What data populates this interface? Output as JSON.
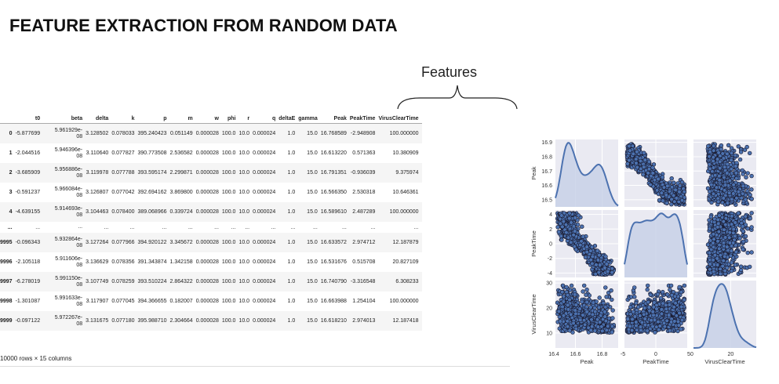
{
  "title": "FEATURE EXTRACTION FROM RANDOM DATA",
  "features_label": "Features",
  "table": {
    "columns": [
      "t0",
      "beta",
      "delta",
      "k",
      "p",
      "m",
      "w",
      "phi",
      "r",
      "q",
      "deltaE",
      "gamma",
      "Peak",
      "PeakTime",
      "VirusClearTime"
    ],
    "rows": [
      {
        "index": "0",
        "cells": [
          "-5.877699",
          "5.961929e-08",
          "3.128502",
          "0.078033",
          "395.240423",
          "0.051149",
          "0.000028",
          "100.0",
          "10.0",
          "0.000024",
          "1.0",
          "15.0",
          "16.768589",
          "-2.948908",
          "100.000000"
        ]
      },
      {
        "index": "1",
        "cells": [
          "-2.044516",
          "5.946396e-08",
          "3.110640",
          "0.077827",
          "390.773508",
          "2.536582",
          "0.000028",
          "100.0",
          "10.0",
          "0.000024",
          "1.0",
          "15.0",
          "16.613220",
          "0.571363",
          "10.380909"
        ]
      },
      {
        "index": "2",
        "cells": [
          "-3.685909",
          "5.956886e-08",
          "3.119978",
          "0.077788",
          "393.595174",
          "2.299871",
          "0.000028",
          "100.0",
          "10.0",
          "0.000024",
          "1.0",
          "15.0",
          "16.791351",
          "-0.936039",
          "9.375974"
        ]
      },
      {
        "index": "3",
        "cells": [
          "-0.591237",
          "5.966084e-08",
          "3.126807",
          "0.077042",
          "392.694162",
          "3.869800",
          "0.000028",
          "100.0",
          "10.0",
          "0.000024",
          "1.0",
          "15.0",
          "16.566350",
          "2.530318",
          "10.646361"
        ]
      },
      {
        "index": "4",
        "cells": [
          "-4.639155",
          "5.914693e-08",
          "3.104463",
          "0.078400",
          "389.068966",
          "0.339724",
          "0.000028",
          "100.0",
          "10.0",
          "0.000024",
          "1.0",
          "15.0",
          "16.589610",
          "2.487289",
          "100.000000"
        ]
      },
      {
        "index": "...",
        "cells": [
          "...",
          "...",
          "...",
          "...",
          "...",
          "...",
          "...",
          "...",
          "...",
          "...",
          "...",
          "...",
          "...",
          "...",
          "..."
        ]
      },
      {
        "index": "9995",
        "cells": [
          "-0.096343",
          "5.932864e-08",
          "3.127264",
          "0.077966",
          "394.920122",
          "3.345672",
          "0.000028",
          "100.0",
          "10.0",
          "0.000024",
          "1.0",
          "15.0",
          "16.633572",
          "2.974712",
          "12.187879"
        ]
      },
      {
        "index": "9996",
        "cells": [
          "-2.105118",
          "5.911606e-08",
          "3.136629",
          "0.078356",
          "391.343874",
          "1.342158",
          "0.000028",
          "100.0",
          "10.0",
          "0.000024",
          "1.0",
          "15.0",
          "16.531676",
          "0.515708",
          "20.827109"
        ]
      },
      {
        "index": "9997",
        "cells": [
          "-6.278019",
          "5.991150e-08",
          "3.107749",
          "0.078259",
          "393.510224",
          "2.864322",
          "0.000028",
          "100.0",
          "10.0",
          "0.000024",
          "1.0",
          "15.0",
          "16.740790",
          "-3.316548",
          "6.308233"
        ]
      },
      {
        "index": "9998",
        "cells": [
          "-1.301087",
          "5.991633e-08",
          "3.117907",
          "0.077045",
          "394.366655",
          "0.182007",
          "0.000028",
          "100.0",
          "10.0",
          "0.000024",
          "1.0",
          "15.0",
          "16.663988",
          "1.254104",
          "100.000000"
        ]
      },
      {
        "index": "9999",
        "cells": [
          "-0.097122",
          "5.972267e-08",
          "3.131675",
          "0.077180",
          "395.988710",
          "2.304664",
          "0.000028",
          "100.0",
          "10.0",
          "0.000024",
          "1.0",
          "15.0",
          "16.618210",
          "2.974013",
          "12.187418"
        ]
      }
    ],
    "shape_note": "10000 rows × 15 columns"
  },
  "chart_data": {
    "type": "scatter",
    "variables": [
      "Peak",
      "PeakTime",
      "VirusClearTime"
    ],
    "axis_ranges": {
      "Peak": [
        16.45,
        16.92
      ],
      "PeakTime": [
        -4.6,
        4.6
      ],
      "VirusClearTime": [
        4,
        31
      ]
    },
    "x_ticks": {
      "Peak": [
        "16.4",
        "16.6",
        "16.8"
      ],
      "PeakTime": [
        "-5",
        "0",
        "5"
      ],
      "VirusClearTime": [
        "0",
        "20"
      ]
    },
    "y_ticks": {
      "Peak": [
        "16.5",
        "16.6",
        "16.7",
        "16.8",
        "16.9"
      ],
      "PeakTime": [
        "-4",
        "-2",
        "0",
        "2",
        "4"
      ],
      "VirusClearTime": [
        "10",
        "20",
        "30"
      ]
    },
    "x_tick_values": {
      "Peak": [
        16.4,
        16.6,
        16.8
      ],
      "PeakTime": [
        -5,
        0,
        5
      ],
      "VirusClearTime": [
        0,
        20
      ]
    },
    "y_tick_values": {
      "Peak": [
        16.5,
        16.6,
        16.7,
        16.8,
        16.9
      ],
      "PeakTime": [
        -4,
        -2,
        0,
        2,
        4
      ],
      "VirusClearTime": [
        10,
        20,
        30
      ]
    },
    "diagonal": "kde",
    "colors": {
      "point_fill": "#4c72b0",
      "point_edge": "#1a1a2e",
      "kde_line": "#4c72b0",
      "kde_fill": "#c5d0e6",
      "panel_bg": "#eaeaf2",
      "grid": "#ffffff"
    },
    "grid": true
  }
}
